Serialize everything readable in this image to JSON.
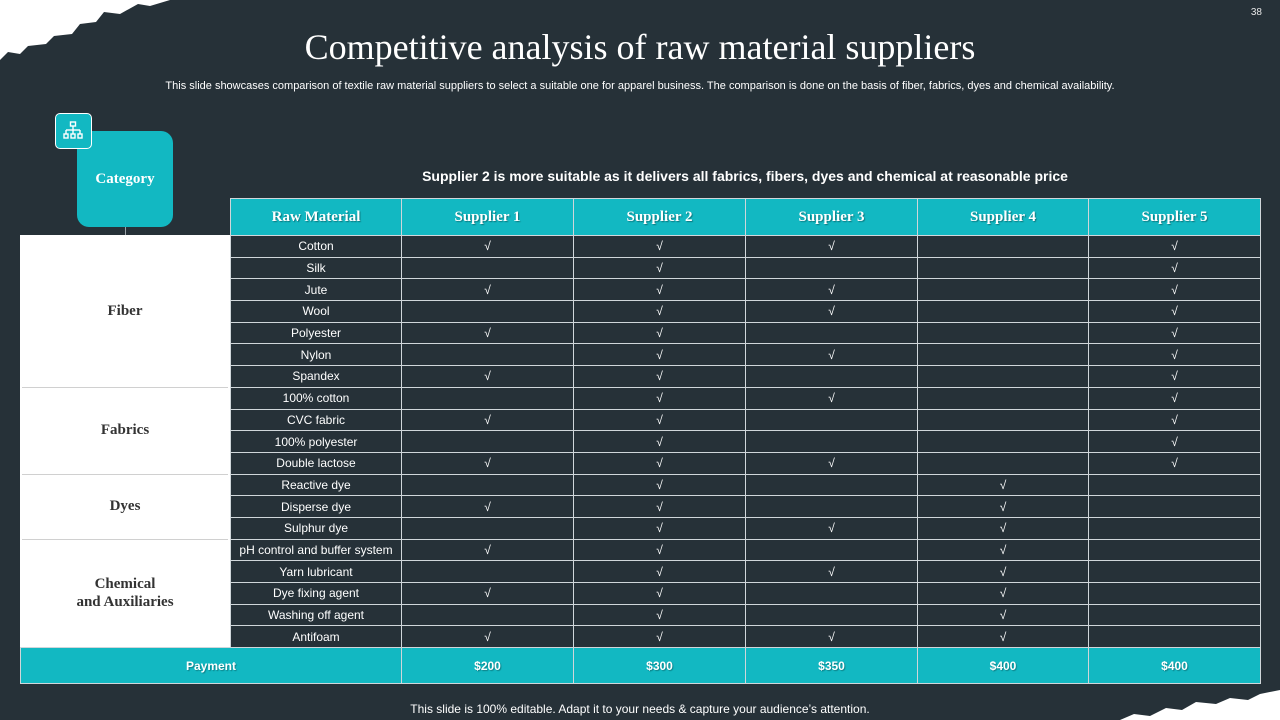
{
  "page_number": "38",
  "title": "Competitive analysis of raw material suppliers",
  "subtitle": "This slide showcases comparison of textile raw material suppliers to select a suitable one for apparel business. The comparison is done on the basis of fiber, fabrics, dyes and chemical availability.",
  "category_label": "Category",
  "note": "Supplier 2 is more suitable as it delivers all fabrics, fibers, dyes and chemical at reasonable price",
  "headers": [
    "Raw Material",
    "Supplier 1",
    "Supplier 2",
    "Supplier 3",
    "Supplier 4",
    "Supplier 5"
  ],
  "categories": [
    {
      "name": "Fiber",
      "rows": 7
    },
    {
      "name": "Fabrics",
      "rows": 4
    },
    {
      "name": "Dyes",
      "rows": 3
    },
    {
      "name": "Chemical\nand Auxiliaries",
      "rows": 5
    }
  ],
  "check_mark": "√",
  "rows": [
    {
      "material": "Cotton",
      "checks": [
        true,
        true,
        true,
        false,
        true
      ]
    },
    {
      "material": "Silk",
      "checks": [
        false,
        true,
        false,
        false,
        true
      ]
    },
    {
      "material": "Jute",
      "checks": [
        true,
        true,
        true,
        false,
        true
      ]
    },
    {
      "material": "Wool",
      "checks": [
        false,
        true,
        true,
        false,
        true
      ]
    },
    {
      "material": "Polyester",
      "checks": [
        true,
        true,
        false,
        false,
        true
      ]
    },
    {
      "material": "Nylon",
      "checks": [
        false,
        true,
        true,
        false,
        true
      ]
    },
    {
      "material": "Spandex",
      "checks": [
        true,
        true,
        false,
        false,
        true
      ]
    },
    {
      "material": "100% cotton",
      "checks": [
        false,
        true,
        true,
        false,
        true
      ]
    },
    {
      "material": "CVC fabric",
      "checks": [
        true,
        true,
        false,
        false,
        true
      ]
    },
    {
      "material": "100% polyester",
      "checks": [
        false,
        true,
        false,
        false,
        true
      ]
    },
    {
      "material": "Double lactose",
      "checks": [
        true,
        true,
        true,
        false,
        true
      ]
    },
    {
      "material": "Reactive dye",
      "checks": [
        false,
        true,
        false,
        true,
        false
      ]
    },
    {
      "material": "Disperse dye",
      "checks": [
        true,
        true,
        false,
        true,
        false
      ]
    },
    {
      "material": "Sulphur dye",
      "checks": [
        false,
        true,
        true,
        true,
        false
      ]
    },
    {
      "material": "pH control and buffer system",
      "checks": [
        true,
        true,
        false,
        true,
        false
      ]
    },
    {
      "material": "Yarn lubricant",
      "checks": [
        false,
        true,
        true,
        true,
        false
      ]
    },
    {
      "material": "Dye fixing agent",
      "checks": [
        true,
        true,
        false,
        true,
        false
      ]
    },
    {
      "material": "Washing off agent",
      "checks": [
        false,
        true,
        false,
        true,
        false
      ]
    },
    {
      "material": "Antifoam",
      "checks": [
        true,
        true,
        true,
        true,
        false
      ]
    }
  ],
  "payment": {
    "label": "Payment",
    "values": [
      "$200",
      "$300",
      "$350",
      "$400",
      "$400"
    ]
  },
  "footer": "This slide is 100% editable. Adapt it to your needs & capture your audience’s attention.",
  "colors": {
    "background": "#263138",
    "accent": "#12b8c2",
    "white": "#ffffff"
  },
  "icons": [
    "org-chart-icon"
  ]
}
